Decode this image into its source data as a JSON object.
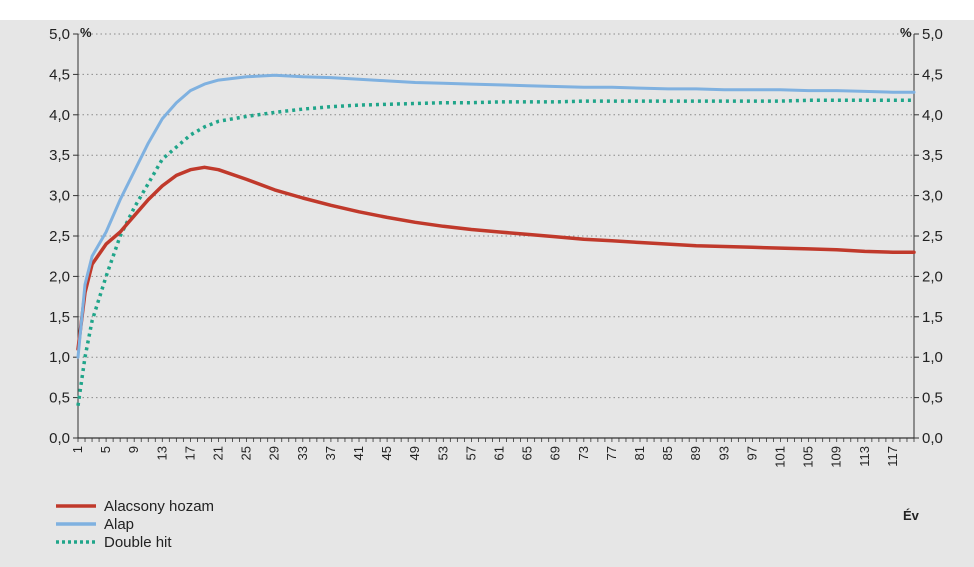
{
  "chart_data": {
    "type": "line",
    "y_unit_left": "%",
    "y_unit_right": "%",
    "xlabel": "Év",
    "ylim": [
      0,
      5
    ],
    "yticks": [
      "0,0",
      "0,5",
      "1,0",
      "1,5",
      "2,0",
      "2,5",
      "3,0",
      "3,5",
      "4,0",
      "4,5",
      "5,0"
    ],
    "x_tick_labels": [
      "1",
      "5",
      "9",
      "13",
      "17",
      "21",
      "25",
      "29",
      "33",
      "37",
      "41",
      "45",
      "49",
      "53",
      "57",
      "61",
      "65",
      "69",
      "73",
      "77",
      "81",
      "85",
      "89",
      "93",
      "97",
      "101",
      "105",
      "109",
      "113",
      "117"
    ],
    "xlim": [
      1,
      120
    ],
    "grid": "dotted-horizontal",
    "legend_position": "bottom-left",
    "series": [
      {
        "name": "Alacsony hozam",
        "color": "#c0392b",
        "style": "solid",
        "points": [
          [
            1,
            1.1
          ],
          [
            2,
            1.8
          ],
          [
            3,
            2.15
          ],
          [
            5,
            2.4
          ],
          [
            7,
            2.55
          ],
          [
            9,
            2.75
          ],
          [
            11,
            2.95
          ],
          [
            13,
            3.12
          ],
          [
            15,
            3.25
          ],
          [
            17,
            3.32
          ],
          [
            19,
            3.35
          ],
          [
            21,
            3.32
          ],
          [
            25,
            3.2
          ],
          [
            29,
            3.07
          ],
          [
            33,
            2.97
          ],
          [
            37,
            2.88
          ],
          [
            41,
            2.8
          ],
          [
            45,
            2.73
          ],
          [
            49,
            2.67
          ],
          [
            53,
            2.62
          ],
          [
            57,
            2.58
          ],
          [
            61,
            2.55
          ],
          [
            65,
            2.52
          ],
          [
            69,
            2.49
          ],
          [
            73,
            2.46
          ],
          [
            77,
            2.44
          ],
          [
            81,
            2.42
          ],
          [
            85,
            2.4
          ],
          [
            89,
            2.38
          ],
          [
            93,
            2.37
          ],
          [
            97,
            2.36
          ],
          [
            101,
            2.35
          ],
          [
            105,
            2.34
          ],
          [
            109,
            2.33
          ],
          [
            113,
            2.31
          ],
          [
            117,
            2.3
          ],
          [
            120,
            2.3
          ]
        ]
      },
      {
        "name": "Alap",
        "color": "#7fb1e0",
        "style": "solid",
        "points": [
          [
            1,
            1.0
          ],
          [
            2,
            1.9
          ],
          [
            3,
            2.25
          ],
          [
            5,
            2.55
          ],
          [
            7,
            2.95
          ],
          [
            9,
            3.3
          ],
          [
            11,
            3.65
          ],
          [
            13,
            3.95
          ],
          [
            15,
            4.15
          ],
          [
            17,
            4.3
          ],
          [
            19,
            4.38
          ],
          [
            21,
            4.43
          ],
          [
            25,
            4.47
          ],
          [
            29,
            4.49
          ],
          [
            33,
            4.47
          ],
          [
            37,
            4.46
          ],
          [
            41,
            4.44
          ],
          [
            45,
            4.42
          ],
          [
            49,
            4.4
          ],
          [
            53,
            4.39
          ],
          [
            57,
            4.38
          ],
          [
            61,
            4.37
          ],
          [
            65,
            4.36
          ],
          [
            69,
            4.35
          ],
          [
            73,
            4.34
          ],
          [
            77,
            4.34
          ],
          [
            81,
            4.33
          ],
          [
            85,
            4.32
          ],
          [
            89,
            4.32
          ],
          [
            93,
            4.31
          ],
          [
            97,
            4.31
          ],
          [
            101,
            4.31
          ],
          [
            105,
            4.3
          ],
          [
            109,
            4.3
          ],
          [
            113,
            4.29
          ],
          [
            117,
            4.28
          ],
          [
            120,
            4.28
          ]
        ]
      },
      {
        "name": "Double hit",
        "color": "#20a58a",
        "style": "dotted",
        "points": [
          [
            1,
            0.4
          ],
          [
            2,
            1.0
          ],
          [
            3,
            1.45
          ],
          [
            5,
            2.0
          ],
          [
            7,
            2.5
          ],
          [
            9,
            2.85
          ],
          [
            11,
            3.15
          ],
          [
            13,
            3.45
          ],
          [
            15,
            3.6
          ],
          [
            17,
            3.75
          ],
          [
            19,
            3.85
          ],
          [
            21,
            3.92
          ],
          [
            25,
            3.98
          ],
          [
            29,
            4.03
          ],
          [
            33,
            4.07
          ],
          [
            37,
            4.1
          ],
          [
            41,
            4.12
          ],
          [
            45,
            4.13
          ],
          [
            49,
            4.14
          ],
          [
            53,
            4.15
          ],
          [
            57,
            4.15
          ],
          [
            61,
            4.16
          ],
          [
            65,
            4.16
          ],
          [
            69,
            4.16
          ],
          [
            73,
            4.17
          ],
          [
            77,
            4.17
          ],
          [
            81,
            4.17
          ],
          [
            85,
            4.17
          ],
          [
            89,
            4.17
          ],
          [
            93,
            4.17
          ],
          [
            97,
            4.17
          ],
          [
            101,
            4.17
          ],
          [
            105,
            4.18
          ],
          [
            109,
            4.18
          ],
          [
            113,
            4.18
          ],
          [
            117,
            4.18
          ],
          [
            120,
            4.18
          ]
        ]
      }
    ]
  }
}
